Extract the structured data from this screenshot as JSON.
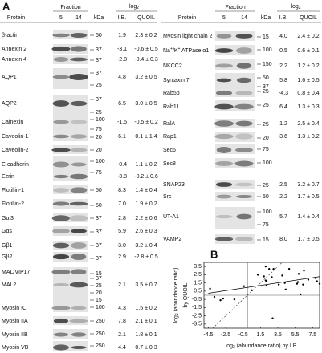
{
  "panel_label": "A",
  "panel_a": {
    "tables": [
      {
        "header": {
          "protein": "Protein",
          "fraction": "Fraction",
          "fractions": [
            "5",
            "14"
          ],
          "kda": "kDa",
          "log": [
            "log",
            {
              "sub": "2"
            }
          ],
          "ib": "I.B.",
          "quoil": "QUOIL"
        },
        "rows": [
          {
            "protein": "β-actin",
            "kda": [
              50
            ],
            "ib": "1.9",
            "quoil": "2.3 ± 0.2"
          },
          {
            "protein": "Annexin 2",
            "kda": [
              37
            ],
            "ib": "-3.1",
            "quoil": "-0.6 ± 0.5"
          },
          {
            "protein": "Annexin 4",
            "kda": [
              37
            ],
            "ib": "-2.8",
            "quoil": "-0.4 ± 0.3"
          },
          {
            "protein": "AQP1",
            "kda": [
              37,
              25
            ],
            "ib": "4.8",
            "quoil": "3.2 ± 0.5"
          },
          {
            "protein": "AQP2",
            "kda": [
              37,
              25
            ],
            "ib": "6.5",
            "quoil": "3.0 ± 0.5"
          },
          {
            "protein": "Calnexin",
            "kda": [
              100,
              75
            ],
            "ib": "-1.5",
            "quoil": "-0.5 ± 0.2"
          },
          {
            "protein": "Caveolin-1",
            "kda": [
              20
            ],
            "ib": "6.1",
            "quoil": "0.1 ± 1.4"
          },
          {
            "protein": "Caveolin-2",
            "kda": [
              20
            ]
          },
          {
            "protein": "E-cadherin",
            "kda": [
              100
            ],
            "ib": "-0.4",
            "quoil": "1.1 ± 0.2"
          },
          {
            "protein": "Ezrin",
            "kda": [
              75
            ],
            "ib": "-3.8",
            "quoil": "-0.2 ± 0.6"
          },
          {
            "protein": "Flotillin-1",
            "kda": [
              50
            ],
            "ib": "8.3",
            "quoil": "1.4 ± 0.4"
          },
          {
            "protein": "Flotillin-2",
            "kda": [
              50
            ],
            "ib": "7.0",
            "quoil": "1.9 ± 0.2"
          },
          {
            "protein": "Gαi3",
            "kda": [
              37
            ],
            "ib": "2.8",
            "quoil": "2.2 ± 0.6"
          },
          {
            "protein": "Gαs",
            "kda": [
              37
            ],
            "ib": "5.9",
            "quoil": "2.6 ± 0.3"
          },
          {
            "protein": "Gβ1",
            "kda": [
              37
            ],
            "ib": "3.0",
            "quoil": "3.2 ± 0.4"
          },
          {
            "protein": "Gβ2",
            "kda": [
              37
            ],
            "ib": "2.9",
            "quoil": "-2.8 ± 0.5"
          },
          {
            "protein": "MAL/VIP17",
            "kda": [
              15
            ]
          },
          {
            "protein": "MAL2",
            "kda": [
              37,
              25,
              20,
              15
            ],
            "ib": "2.1",
            "quoil": "3.5 ± 0.7"
          },
          {
            "protein": "Myosin IC",
            "kda": [
              100
            ],
            "ib": "4.3",
            "quoil": "1.5 ± 0.2"
          },
          {
            "protein": "Myosin IIA",
            "kda": [
              250
            ],
            "ib": "7.8",
            "quoil": "2.1 ± 0.1"
          },
          {
            "protein": "Myosin IIB",
            "kda": [
              250
            ],
            "ib": "2.1",
            "quoil": "1.8 ± 0.1"
          },
          {
            "protein": "Myosin VB",
            "kda": [
              250
            ],
            "ib": "4.4",
            "quoil": "0.7 ± 0.3"
          }
        ]
      },
      {
        "header": {
          "protein": "Protein",
          "fraction": "Fraction",
          "fractions": [
            "5",
            "14"
          ],
          "kda": "kDa",
          "log": [
            "log",
            {
              "sub": "2"
            }
          ],
          "ib": "I.B.",
          "quoil": "QUOIL"
        },
        "rows": [
          {
            "protein": "Myosin light chain 2",
            "kda": [
              15
            ],
            "ib": "4.0",
            "quoil": "2.4 ± 0.2"
          },
          {
            "protein": [
              "Na",
              {
                "sup": "+"
              },
              "/K",
              {
                "sup": "+"
              },
              " ATPase α1"
            ],
            "kda": [
              100
            ],
            "ib": "0.5",
            "quoil": "0.6 ± 0.1"
          },
          {
            "protein": "NKCC2",
            "kda": [
              150
            ],
            "ib": "2.2",
            "quoil": "1.2 ± 0.2"
          },
          {
            "protein": "Syntaxin 7",
            "kda": [
              50,
              37
            ],
            "ib": "5.8",
            "quoil": "1.6 ± 0.5"
          },
          {
            "protein": "Rab5b",
            "kda": [
              25
            ],
            "ib": "-4.3",
            "quoil": "0.8 ± 0.4"
          },
          {
            "protein": "Rab11",
            "kda": [
              25
            ],
            "ib": "6.4",
            "quoil": "1.3 ± 0.3"
          },
          {
            "protein": "RalA",
            "kda": [
              25
            ],
            "ib": "1.2",
            "quoil": "2.5 ± 0.4"
          },
          {
            "protein": "Rap1",
            "kda": [
              20
            ],
            "ib": "3.6",
            "quoil": "1.3 ± 0.2"
          },
          {
            "protein": "Sec6",
            "kda": [
              75
            ]
          },
          {
            "protein": "Sec8",
            "kda": [
              100
            ]
          },
          {
            "protein": "SNAP23",
            "kda": [
              25
            ],
            "ib": "2.5",
            "quoil": "3.2 ± 0.7"
          },
          {
            "protein": "Src",
            "kda": [
              50
            ],
            "ib": "2.2",
            "quoil": "1.7 ± 0.5"
          },
          {
            "protein": "UT-A1",
            "kda": [
              100,
              75
            ],
            "ib": "5.7",
            "quoil": "1.4 ± 0.4"
          },
          {
            "protein": "VAMP2",
            "kda": [
              15
            ],
            "ib": "8.0",
            "quoil": "1.7 ± 0.5"
          }
        ]
      }
    ]
  },
  "chart_data": {
    "type": "scatter",
    "label": "B",
    "xlabel": [
      "log",
      {
        "sub": "2"
      },
      " (abundance ratio) by I.B."
    ],
    "ylabel": [
      [
        "log",
        {
          "sub": "2"
        },
        " (abundance ratio)"
      ],
      "by QUOIL"
    ],
    "x": [
      1.9,
      -3.1,
      -2.8,
      4.8,
      6.5,
      -1.5,
      6.1,
      -0.4,
      -3.8,
      8.3,
      7.0,
      2.8,
      5.9,
      3.0,
      2.9,
      2.1,
      4.3,
      7.8,
      2.1,
      4.4,
      4.0,
      0.5,
      2.2,
      5.8,
      -4.3,
      6.4,
      1.2,
      3.6,
      2.5,
      2.2,
      5.7,
      8.0
    ],
    "y": [
      2.3,
      -0.6,
      -0.4,
      3.2,
      3.0,
      -0.5,
      0.1,
      1.1,
      -0.2,
      1.4,
      1.9,
      2.2,
      2.6,
      3.2,
      -2.8,
      3.5,
      1.5,
      2.1,
      1.8,
      0.7,
      2.4,
      0.6,
      1.2,
      1.6,
      0.8,
      1.3,
      2.5,
      1.3,
      3.2,
      1.7,
      1.4,
      1.7
    ],
    "color": "#000000",
    "xlim": [
      -5,
      8.3
    ],
    "ylim": [
      -4,
      4
    ],
    "xticks": [
      -4.5,
      -2.5,
      -0.5,
      1.5,
      3.5,
      5.5,
      7.5
    ],
    "yticks": [
      3.5,
      2.5,
      1.5,
      0.5,
      -0.5,
      -1.5,
      -2.5,
      -3.5
    ]
  }
}
